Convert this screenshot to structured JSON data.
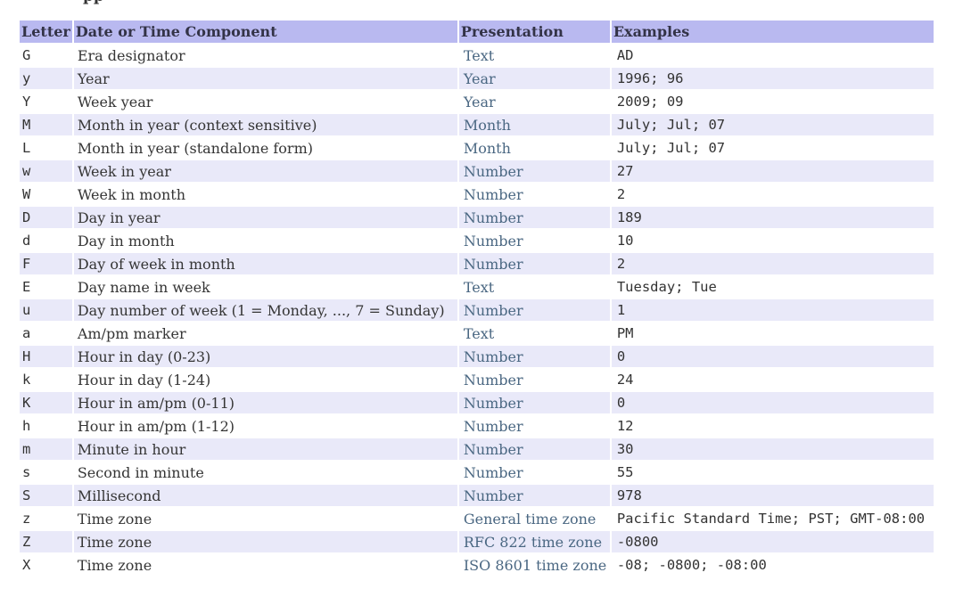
{
  "page": {
    "clipped_heading_fragment": "pp"
  },
  "table": {
    "headers": [
      "Letter",
      "Date or Time Component",
      "Presentation",
      "Examples"
    ],
    "rows": [
      {
        "letter": "G",
        "component": "Era designator",
        "presentation": "Text",
        "examples": "AD"
      },
      {
        "letter": "y",
        "component": "Year",
        "presentation": "Year",
        "examples": "1996; 96"
      },
      {
        "letter": "Y",
        "component": "Week year",
        "presentation": "Year",
        "examples": "2009; 09"
      },
      {
        "letter": "M",
        "component": "Month in year (context sensitive)",
        "presentation": "Month",
        "examples": "July; Jul; 07"
      },
      {
        "letter": "L",
        "component": "Month in year (standalone form)",
        "presentation": "Month",
        "examples": "July; Jul; 07"
      },
      {
        "letter": "w",
        "component": "Week in year",
        "presentation": "Number",
        "examples": "27"
      },
      {
        "letter": "W",
        "component": "Week in month",
        "presentation": "Number",
        "examples": "2"
      },
      {
        "letter": "D",
        "component": "Day in year",
        "presentation": "Number",
        "examples": "189"
      },
      {
        "letter": "d",
        "component": "Day in month",
        "presentation": "Number",
        "examples": "10"
      },
      {
        "letter": "F",
        "component": "Day of week in month",
        "presentation": "Number",
        "examples": "2"
      },
      {
        "letter": "E",
        "component": "Day name in week",
        "presentation": "Text",
        "examples": "Tuesday; Tue"
      },
      {
        "letter": "u",
        "component": "Day number of week (1 = Monday, ..., 7 = Sunday)",
        "presentation": "Number",
        "examples": "1"
      },
      {
        "letter": "a",
        "component": "Am/pm marker",
        "presentation": "Text",
        "examples": "PM"
      },
      {
        "letter": "H",
        "component": "Hour in day (0-23)",
        "presentation": "Number",
        "examples": "0"
      },
      {
        "letter": "k",
        "component": "Hour in day (1-24)",
        "presentation": "Number",
        "examples": "24"
      },
      {
        "letter": "K",
        "component": "Hour in am/pm (0-11)",
        "presentation": "Number",
        "examples": "0"
      },
      {
        "letter": "h",
        "component": "Hour in am/pm (1-12)",
        "presentation": "Number",
        "examples": "12"
      },
      {
        "letter": "m",
        "component": "Minute in hour",
        "presentation": "Number",
        "examples": "30"
      },
      {
        "letter": "s",
        "component": "Second in minute",
        "presentation": "Number",
        "examples": "55"
      },
      {
        "letter": "S",
        "component": "Millisecond",
        "presentation": "Number",
        "examples": "978"
      },
      {
        "letter": "z",
        "component": "Time zone",
        "presentation": "General time zone",
        "examples": "Pacific Standard Time; PST; GMT-08:00"
      },
      {
        "letter": "Z",
        "component": "Time zone",
        "presentation": "RFC 822 time zone",
        "examples": "-0800"
      },
      {
        "letter": "X",
        "component": "Time zone",
        "presentation": "ISO 8601 time zone",
        "examples": "-08; -0800; -08:00"
      }
    ]
  },
  "colors": {
    "header_bg": "#b9b9f0",
    "alt_row_bg": "#e9e9f9",
    "link_color": "#4a6782",
    "text_color": "#353535"
  }
}
